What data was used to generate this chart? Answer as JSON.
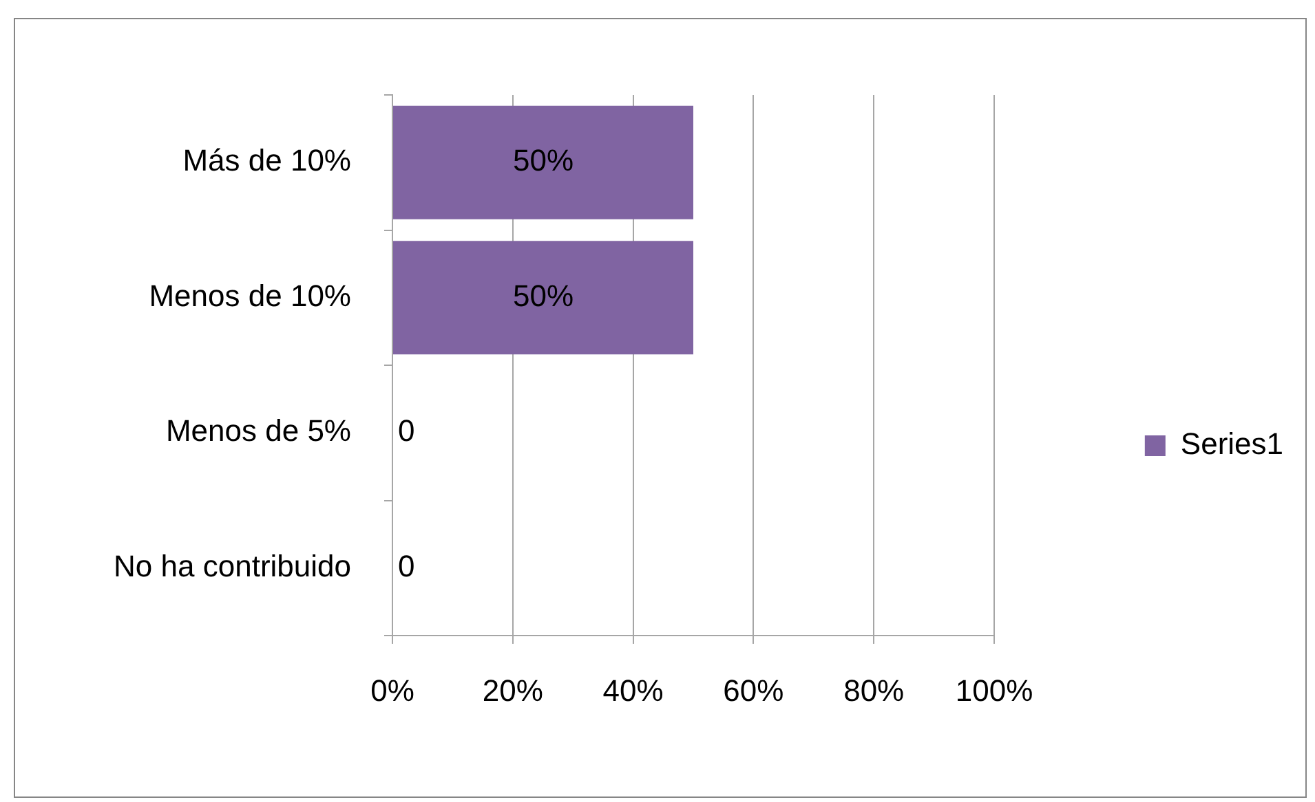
{
  "chart_data": {
    "type": "bar",
    "orientation": "horizontal",
    "categories": [
      "Más de 10%",
      "Menos de 10%",
      "Menos de 5%",
      "No ha contribuido"
    ],
    "series": [
      {
        "name": "Series1",
        "color": "#8064a2",
        "values": [
          50,
          50,
          0,
          0
        ],
        "value_labels": [
          "50%",
          "50%",
          "0",
          "0"
        ]
      }
    ],
    "xlim": [
      0,
      100
    ],
    "xticks": [
      {
        "value": 0,
        "label": "0%"
      },
      {
        "value": 20,
        "label": "20%"
      },
      {
        "value": 40,
        "label": "40%"
      },
      {
        "value": 60,
        "label": "60%"
      },
      {
        "value": 80,
        "label": "80%"
      },
      {
        "value": 100,
        "label": "100%"
      }
    ],
    "grid": "x",
    "legend": "right"
  }
}
